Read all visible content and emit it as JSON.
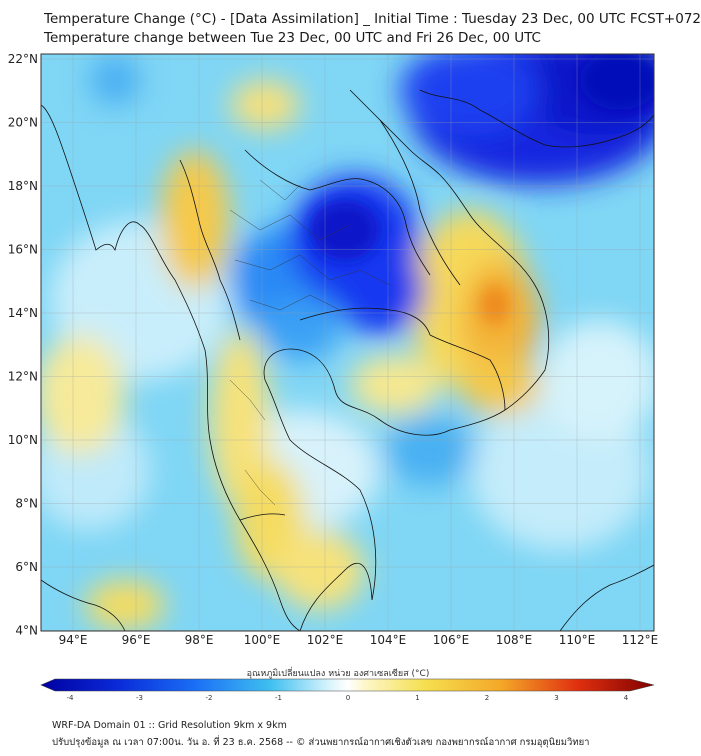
{
  "title": {
    "line1": "Temperature Change (°C) - [Data Assimilation] _ Initial Time : Tuesday 23 Dec, 00 UTC FCST+072",
    "line2": "Temperature change between Tue 23 Dec, 00 UTC and Fri 26 Dec, 00 UTC"
  },
  "map": {
    "lat_labels": [
      "22°N",
      "20°N",
      "18°N",
      "16°N",
      "14°N",
      "12°N",
      "10°N",
      "8°N",
      "6°N",
      "4°N"
    ],
    "lon_labels": [
      "94°E",
      "96°E",
      "98°E",
      "100°E",
      "102°E",
      "104°E",
      "106°E",
      "108°E",
      "110°E",
      "112°E"
    ]
  },
  "colorbar": {
    "label": "อุณหภูมิเปลี่ยนแปลง หน่วย องศาเซลเซียส (°C)",
    "ticks": [
      "-4",
      "-3",
      "-2",
      "-1",
      "0",
      "1",
      "2",
      "3",
      "4"
    ],
    "colors": {
      "cold_max": "#0000a0",
      "cold": "#1a4dff",
      "cool": "#40c0f0",
      "neutral": "#ffffff",
      "warm": "#f5e050",
      "hot": "#f08010",
      "hot_max": "#800000"
    }
  },
  "footer": {
    "line1": "WRF-DA Domain 01 :: Grid Resolution 9km x 9km",
    "line2": "ปรับปรุงข้อมูล ณ เวลา 07:00น. วัน อ. ที่ 23 ธ.ค. 2568 -- © ส่วนพยากรณ์อากาศเชิงตัวเลข กองพยากรณ์อากาศ กรมอุตุนิยมวิทยา"
  }
}
